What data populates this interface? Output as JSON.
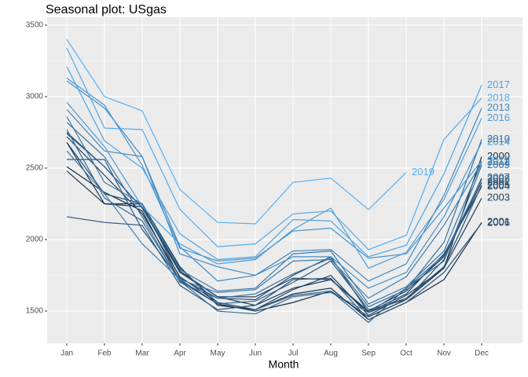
{
  "chart_data": {
    "type": "line",
    "title": "Seasonal plot: USgas",
    "x_label": "Month",
    "categories": [
      "Jan",
      "Feb",
      "Mar",
      "Apr",
      "May",
      "Jun",
      "Jul",
      "Aug",
      "Sep",
      "Oct",
      "Nov",
      "Dec"
    ],
    "ylim": [
      1275,
      3555
    ],
    "yticks": [
      1500,
      2000,
      2500,
      3000,
      3500
    ],
    "grid": true,
    "series": [
      {
        "name": "2000",
        "color": "#132B43",
        "values": [
          2510,
          2330,
          2200,
          1710,
          1550,
          1500,
          1560,
          1640,
          1460,
          1580,
          1800,
          2580
        ]
      },
      {
        "name": "2001",
        "color": "#17324C",
        "values": [
          2680,
          2250,
          2250,
          1810,
          1540,
          1510,
          1620,
          1660,
          1440,
          1560,
          1720,
          2120
        ]
      },
      {
        "name": "2002",
        "color": "#1A3956",
        "values": [
          2480,
          2250,
          2230,
          1780,
          1600,
          1540,
          1660,
          1720,
          1500,
          1640,
          1880,
          2400
        ]
      },
      {
        "name": "2003",
        "color": "#1E405F",
        "values": [
          2720,
          2450,
          2180,
          1740,
          1560,
          1510,
          1650,
          1750,
          1470,
          1610,
          1800,
          2290
        ]
      },
      {
        "name": "2004",
        "color": "#214769",
        "values": [
          2750,
          2510,
          2220,
          1770,
          1600,
          1600,
          1730,
          1720,
          1490,
          1620,
          1900,
          2370
        ]
      },
      {
        "name": "2005",
        "color": "#254E72",
        "values": [
          2680,
          2320,
          2250,
          1730,
          1590,
          1580,
          1750,
          1880,
          1490,
          1590,
          1810,
          2380
        ]
      },
      {
        "name": "2006",
        "color": "#28557C",
        "values": [
          2160,
          2120,
          2100,
          1680,
          1510,
          1540,
          1720,
          1730,
          1440,
          1560,
          1770,
          2115
        ]
      },
      {
        "name": "2007",
        "color": "#2C5C85",
        "values": [
          2560,
          2560,
          2070,
          1720,
          1550,
          1570,
          1700,
          1850,
          1510,
          1580,
          1860,
          2430
        ]
      },
      {
        "name": "2008",
        "color": "#2F638F",
        "values": [
          2740,
          2510,
          2220,
          1800,
          1560,
          1510,
          1610,
          1640,
          1420,
          1660,
          1890,
          2420
        ]
      },
      {
        "name": "2009",
        "color": "#336A98",
        "values": [
          2770,
          2290,
          2130,
          1710,
          1500,
          1480,
          1600,
          1630,
          1490,
          1660,
          1850,
          2520
        ]
      },
      {
        "name": "2010",
        "color": "#3671A2",
        "values": [
          2820,
          2580,
          2160,
          1700,
          1590,
          1620,
          1760,
          1870,
          1530,
          1650,
          1980,
          2700
        ]
      },
      {
        "name": "2011",
        "color": "#3A79AB",
        "values": [
          2860,
          2400,
          2250,
          1790,
          1640,
          1660,
          1900,
          1920,
          1550,
          1670,
          1920,
          2540
        ]
      },
      {
        "name": "2012",
        "color": "#3D80B5",
        "values": [
          2620,
          2320,
          1970,
          1720,
          1630,
          1650,
          1850,
          1860,
          1590,
          1740,
          2100,
          2540
        ]
      },
      {
        "name": "2013",
        "color": "#4187BE",
        "values": [
          2910,
          2620,
          2580,
          1950,
          1710,
          1750,
          1920,
          1930,
          1710,
          1830,
          2310,
          2920
        ]
      },
      {
        "name": "2014",
        "color": "#448EC8",
        "values": [
          3110,
          2920,
          2580,
          1900,
          1810,
          1750,
          1880,
          1880,
          1660,
          1770,
          2160,
          2680
        ]
      },
      {
        "name": "2015",
        "color": "#4895D1",
        "values": [
          3130,
          2940,
          2520,
          1940,
          1850,
          1870,
          2060,
          2080,
          1870,
          1900,
          2220,
          2550
        ]
      },
      {
        "name": "2016",
        "color": "#4B9CDB",
        "values": [
          2960,
          2650,
          2230,
          1970,
          1830,
          1860,
          2070,
          2220,
          1800,
          1910,
          2280,
          2850
        ]
      },
      {
        "name": "2017",
        "color": "#4FA3E4",
        "values": [
          3210,
          2690,
          2500,
          2040,
          1860,
          1880,
          2140,
          2130,
          1880,
          1960,
          2460,
          3080
        ]
      },
      {
        "name": "2018",
        "color": "#52AAEE",
        "values": [
          3340,
          2780,
          2770,
          2210,
          1950,
          1970,
          2180,
          2200,
          1930,
          2030,
          2700,
          2990
        ]
      },
      {
        "name": "2019",
        "color": "#56B1F7",
        "values": [
          3400,
          3000,
          2900,
          2350,
          2120,
          2110,
          2400,
          2430,
          2210,
          2470,
          null,
          null
        ]
      }
    ]
  }
}
